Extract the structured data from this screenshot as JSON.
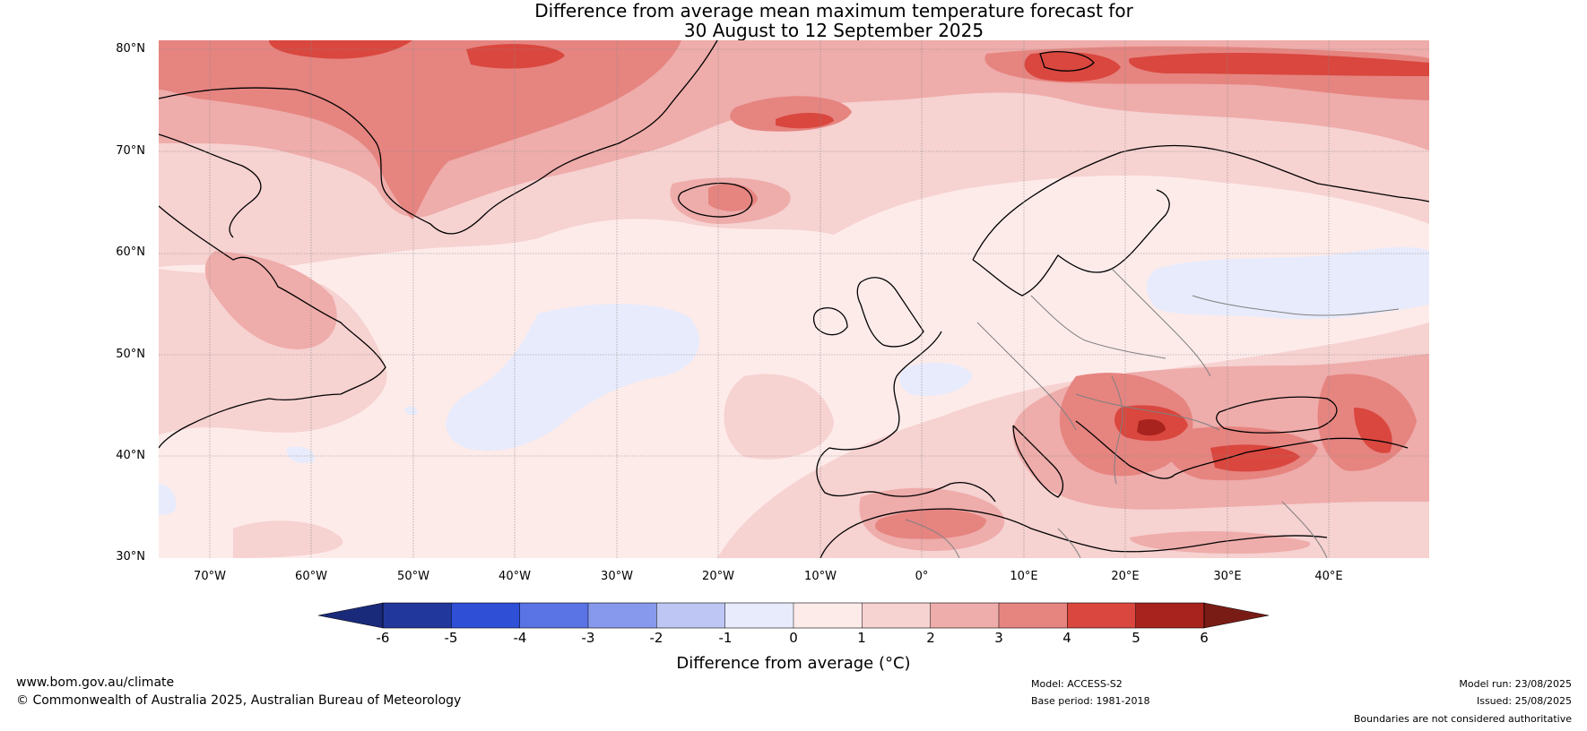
{
  "title": {
    "line1": "Difference from average mean maximum temperature forecast for",
    "line2": "30 August to 12 September 2025"
  },
  "axes": {
    "lat_labels": [
      "80°N",
      "70°N",
      "60°N",
      "50°N",
      "40°N",
      "30°N"
    ],
    "lon_labels": [
      "70°W",
      "60°W",
      "50°W",
      "40°W",
      "30°W",
      "20°W",
      "10°W",
      "0°",
      "10°E",
      "20°E",
      "30°E",
      "40°E"
    ],
    "lat_range": [
      30,
      81
    ],
    "lon_range": [
      -75,
      50
    ]
  },
  "colorbar": {
    "ticks": [
      "-6",
      "-5",
      "-4",
      "-3",
      "-2",
      "-1",
      "0",
      "1",
      "2",
      "3",
      "4",
      "5",
      "6"
    ],
    "colors": [
      "#22379c",
      "#2e4fd6",
      "#5a73e5",
      "#8799ec",
      "#bec7f3",
      "#e8ebfb",
      "#fdebea",
      "#f6d2d1",
      "#eeacaa",
      "#e68480",
      "#d9473e",
      "#a8231e"
    ],
    "under_color": "#1a2a7a",
    "over_color": "#7a1c16",
    "label": "Difference from average (°C)"
  },
  "footer": {
    "left1": "www.bom.gov.au/climate",
    "left2": "© Commonwealth of Australia 2025, Australian Bureau of Meteorology",
    "model": "Model: ACCESS-S2",
    "base": "Base period: 1981-2018",
    "run": "Model run: 23/08/2025",
    "issued": "Issued: 25/08/2025",
    "disclaimer": "Boundaries are not considered authoritative"
  },
  "map_colors": {
    "land_line": "#000000",
    "border_line": "#808080",
    "grid_line": "#8a8a8a"
  }
}
